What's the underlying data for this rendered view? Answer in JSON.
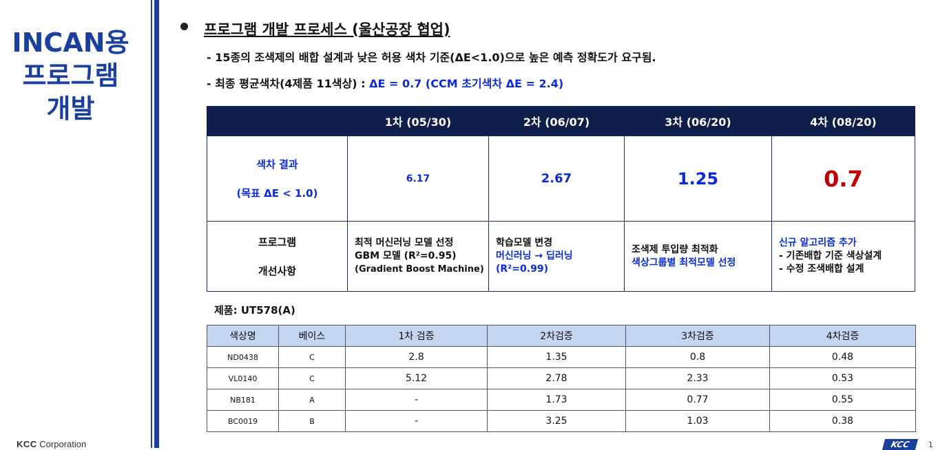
{
  "side_title": [
    "INCAN용",
    "프로그램",
    "개발"
  ],
  "footer": {
    "corp_bold": "KCC",
    "corp_rest": " Corporation",
    "logo": "KCC",
    "page": "1"
  },
  "heading": "프로그램 개발 프로세스 (울산공장 협업)",
  "line1": "- 15종의 조색제의 배합 설계과 낮은 허용 색차 기준(ΔE<1.0)으로 높은 예측 정확도가 요구됨.",
  "line2_black": "- 최종 평균색차(4제품 11색상) : ",
  "line2_blue": "ΔE = 0.7 (CCM 초기색차 ΔE = 2.4)",
  "table1": {
    "headers": [
      "",
      "1차 (05/30)",
      "2차 (06/07)",
      "3차 (06/20)",
      "4차 (08/20)"
    ],
    "row1_label": [
      "색차 결과",
      "(목표 ΔE < 1.0)"
    ],
    "row1_values": [
      "6.17",
      "2.67",
      "1.25",
      "0.7"
    ],
    "row2_label": [
      "프로그램",
      "개선사항"
    ],
    "c1": [
      "최적 머신러닝 모델 선정",
      "GBM 모델 (R²=0.95)",
      "(Gradient Boost Machine)"
    ],
    "c2": [
      "학습모델 변경",
      "머신러닝 → 딥러닝",
      "(R²=0.99)"
    ],
    "c3": [
      "조색제 투입량 최적화",
      "색상그룹별 최적모델 선정"
    ],
    "c4": [
      "신규 알고리즘 추가",
      "- 기존배합 기준 색상설계",
      "- 수정 조색배합 설계"
    ]
  },
  "product_label": "제품: UT578(A)",
  "table2": {
    "headers": [
      "색상명",
      "베이스",
      "1차 검증",
      "2차검증",
      "3차검증",
      "4차검증"
    ],
    "rows": [
      [
        "ND0438",
        "C",
        "2.8",
        "1.35",
        "0.8",
        "0.48"
      ],
      [
        "VL0140",
        "C",
        "5.12",
        "2.78",
        "2.33",
        "0.53"
      ],
      [
        "NB181",
        "A",
        "-",
        "1.73",
        "0.77",
        "0.55"
      ],
      [
        "BC0019",
        "B",
        "-",
        "3.25",
        "1.03",
        "0.38"
      ]
    ]
  }
}
